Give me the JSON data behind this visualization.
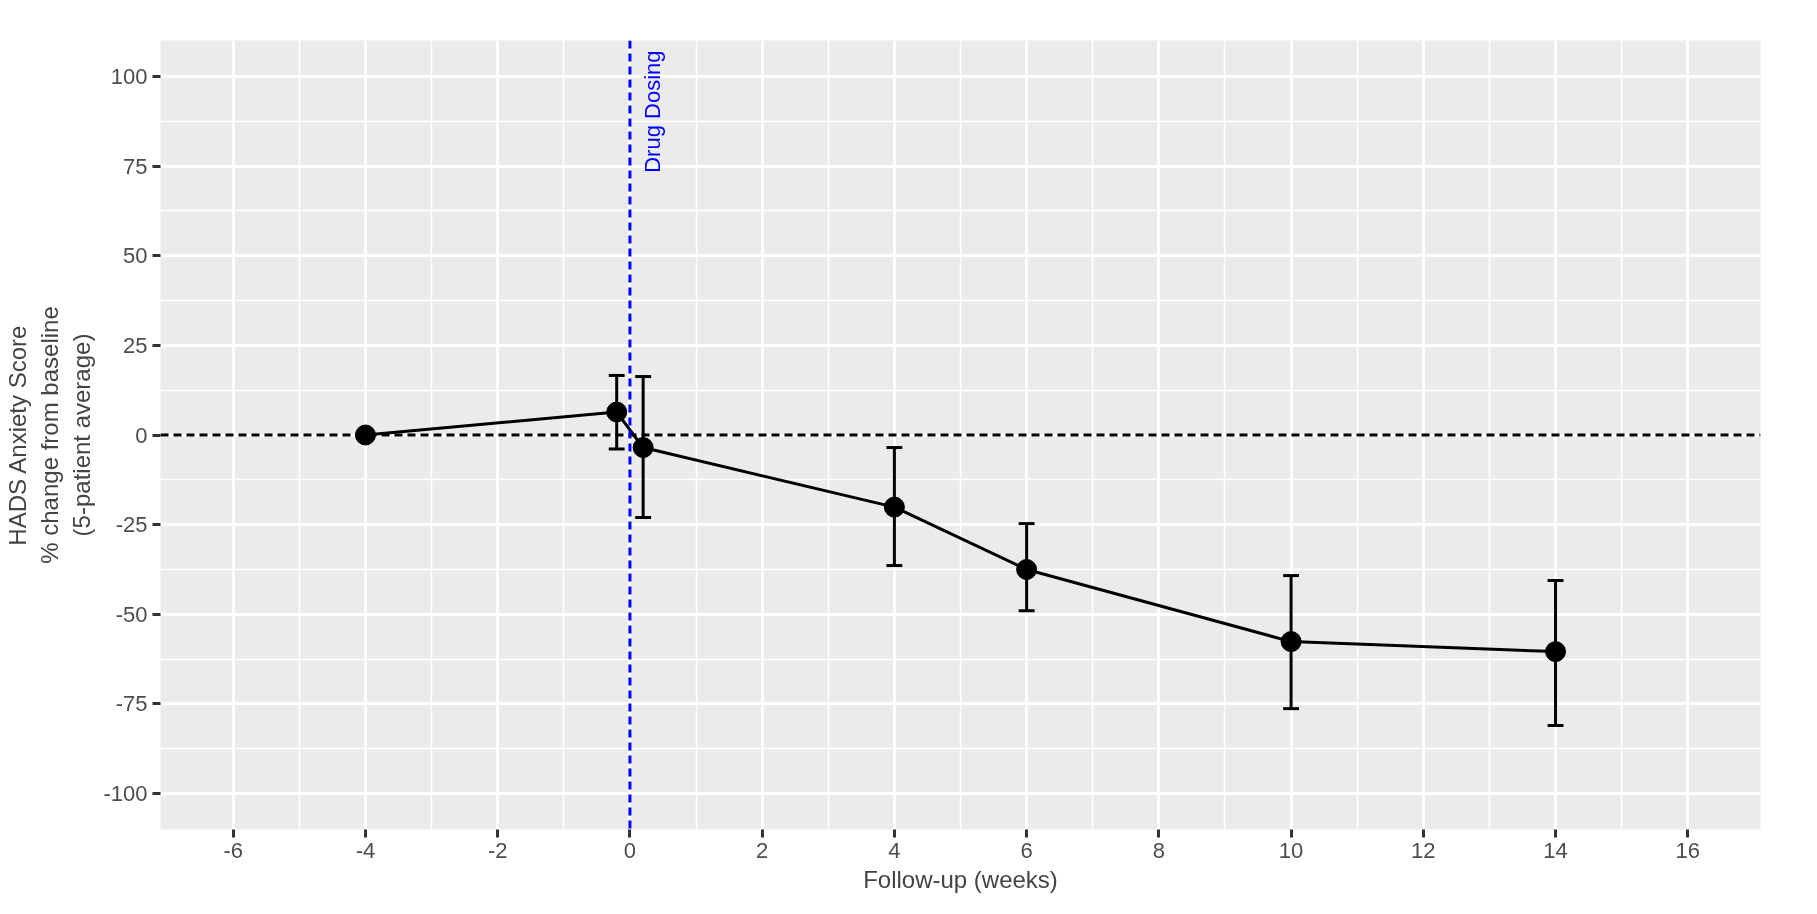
{
  "chart_data": {
    "type": "line",
    "xlabel": "Follow-up (weeks)",
    "ylabel": "HADS Anxiety Score\n% change from baseline\n(5-patient average)",
    "series": [
      {
        "color": "#000000",
        "x": [
          -4,
          -0.2,
          0.2,
          4,
          6,
          10,
          14
        ],
        "values": [
          0,
          6.4,
          -3.5,
          -20.1,
          -37.5,
          -57.6,
          -60.4
        ],
        "errors": [
          null,
          [
            -3.9,
            16.6
          ],
          [
            -23,
            16.3
          ],
          [
            -36.4,
            -3.5
          ],
          [
            -49,
            -24.7
          ],
          [
            -76.3,
            -39.2
          ],
          [
            -81,
            -40.6
          ]
        ]
      }
    ],
    "marker": "circle",
    "line_style": "solid",
    "xlim": [
      -7.1,
      17.1
    ],
    "xticks": [
      -6,
      -4,
      -2,
      0,
      2,
      4,
      6,
      8,
      10,
      12,
      14,
      16
    ],
    "ylim": [
      -110,
      110
    ],
    "yticks": [
      -100,
      -75,
      -50,
      -25,
      0,
      25,
      50,
      75,
      100
    ],
    "grid": true,
    "ref_lines": [
      {
        "axis": "y",
        "value": 0,
        "label": null,
        "color": "#000000",
        "line_style": "dashed"
      },
      {
        "axis": "x",
        "value": 0,
        "label": "Drug Dosing",
        "color": "#0000ff",
        "line_style": "dashed"
      }
    ]
  }
}
